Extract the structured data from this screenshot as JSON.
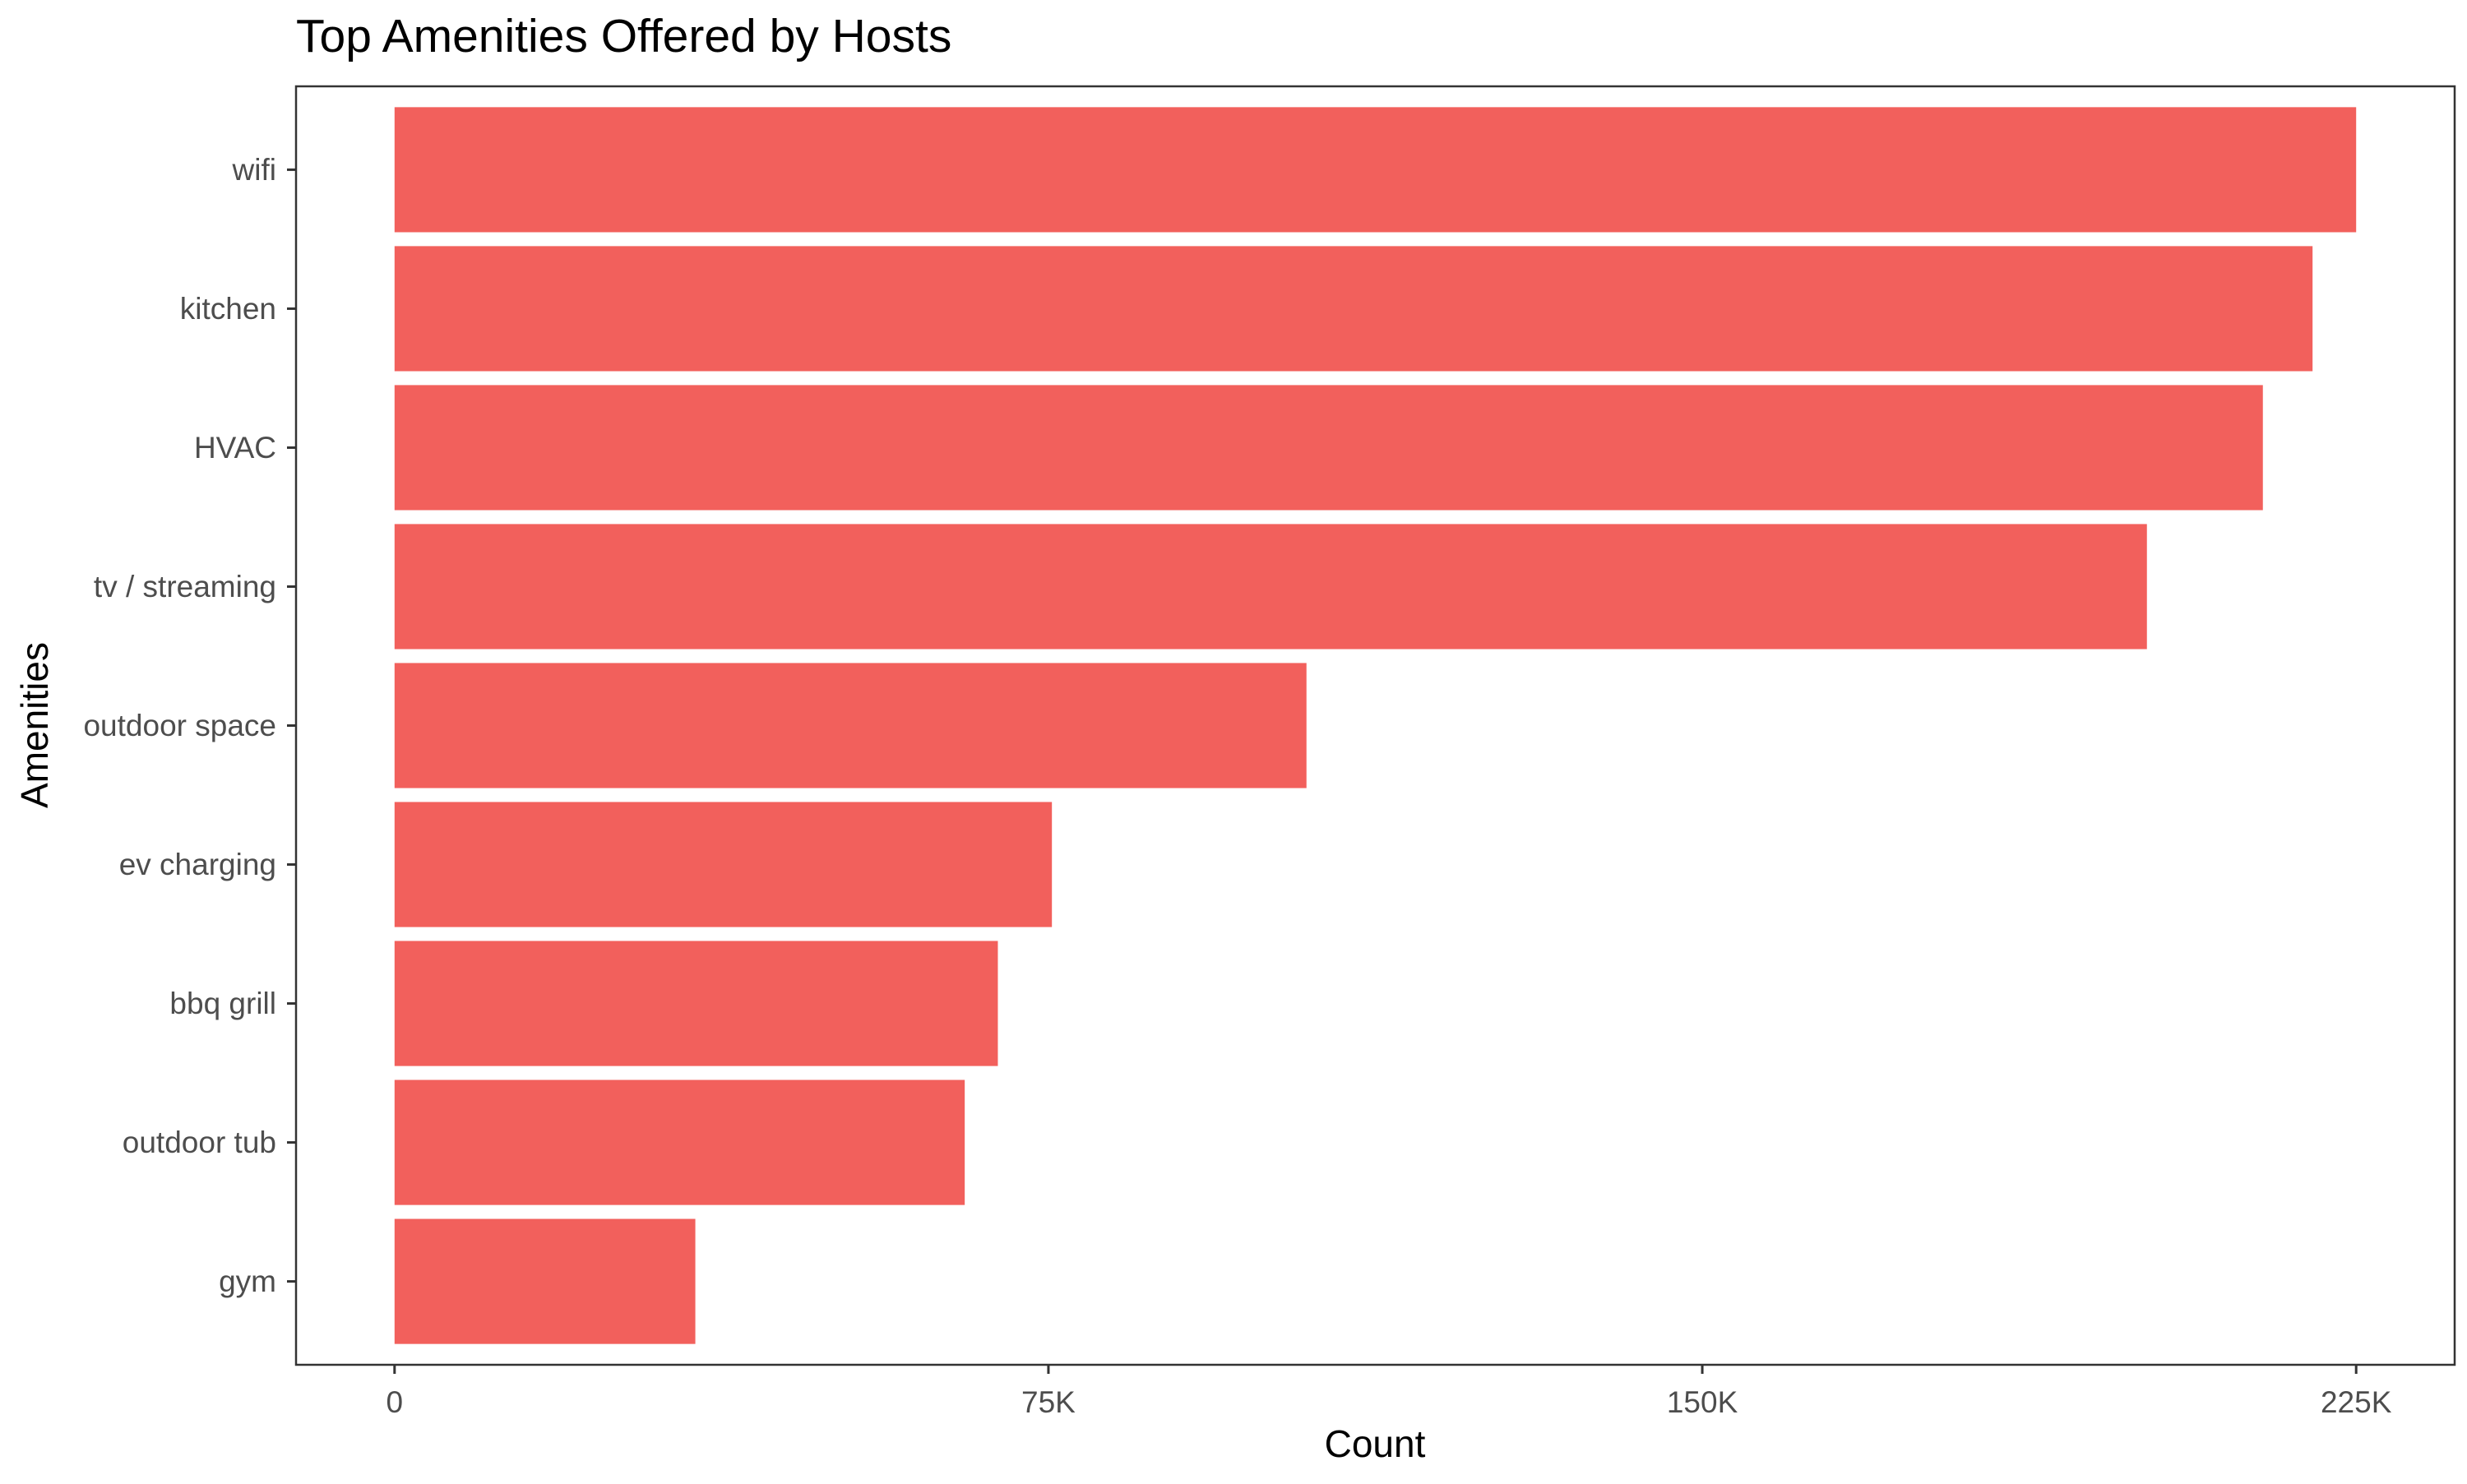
{
  "chart_data": {
    "type": "bar",
    "orientation": "horizontal",
    "title": "Top Amenities Offered by Hosts",
    "xlabel": "Count",
    "ylabel": "Amenities",
    "categories": [
      "wifi",
      "kitchen",
      "HVAC",
      "tv / streaming",
      "outdoor space",
      "ev charging",
      "bbq grill",
      "outdoor tub",
      "gym"
    ],
    "values": [
      225000,
      220000,
      214300,
      201000,
      104600,
      75400,
      69200,
      65400,
      34500
    ],
    "xlim": [
      -11300,
      236300
    ],
    "x_ticks": [
      0,
      75000,
      150000,
      225000
    ],
    "x_tick_labels": [
      "0",
      "75K",
      "150K",
      "225K"
    ],
    "bar_color": "#F2605C",
    "grid": false,
    "legend": "none"
  }
}
